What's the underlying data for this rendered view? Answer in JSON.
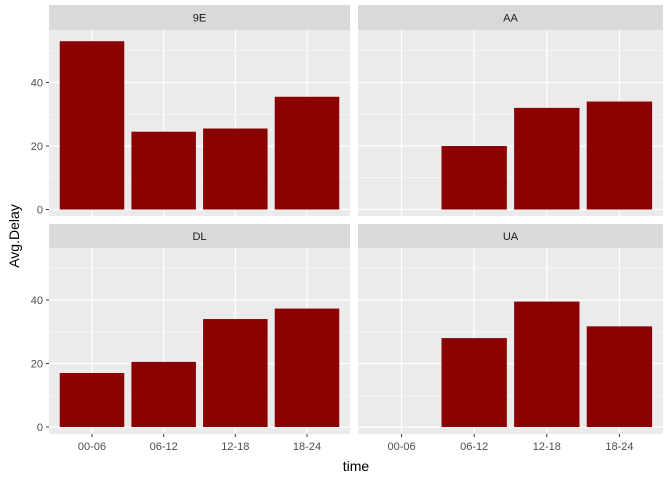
{
  "chart_data": {
    "type": "bar",
    "layout": "facet-wrap 2x2",
    "xlabel": "time",
    "ylabel": "Avg.Delay",
    "categories": [
      "00-06",
      "06-12",
      "12-18",
      "18-24"
    ],
    "ylim": [
      0,
      55
    ],
    "yticks": [
      0,
      20,
      40
    ],
    "grid": true,
    "bar_color": "#8B0000",
    "panel_background": "#EBEBEB",
    "strip_background": "#D9D9D9",
    "grid_color": "#FFFFFF",
    "panels": [
      {
        "name": "9E",
        "values": [
          53,
          24.5,
          25.5,
          35.5
        ]
      },
      {
        "name": "AA",
        "values": [
          null,
          20,
          32,
          34
        ]
      },
      {
        "name": "DL",
        "values": [
          17,
          20.5,
          34,
          37.3
        ]
      },
      {
        "name": "UA",
        "values": [
          null,
          28,
          39.5,
          31.7
        ]
      }
    ]
  }
}
